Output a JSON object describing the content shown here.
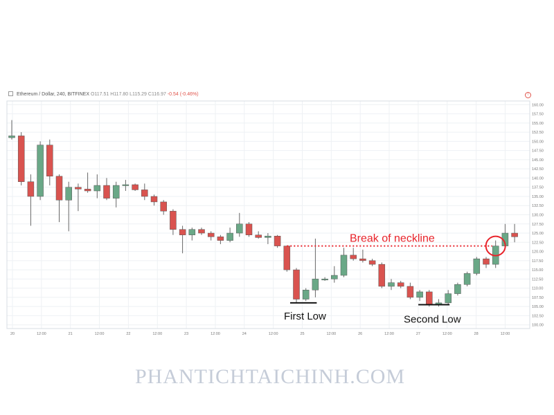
{
  "header": {
    "symbol": "Ethereum / Dollar, 240, BITFINEX",
    "open": "O117.51",
    "high": "H117.80",
    "low": "L115.29",
    "close": "C116.97",
    "change": "-0.54 (-0.46%)"
  },
  "watermark": "PHANTICHTAICHINH.COM",
  "colors": {
    "up": "#6aa887",
    "down": "#d9534f",
    "annotation": "#e8232a",
    "text": "#111111",
    "grid": "#eef1f4"
  },
  "chart_data": {
    "type": "candlestick",
    "ylim": [
      99,
      161
    ],
    "y_ticks": [
      "160.00",
      "157.50",
      "155.00",
      "152.50",
      "150.00",
      "147.50",
      "145.00",
      "142.50",
      "140.00",
      "137.50",
      "135.00",
      "132.50",
      "130.00",
      "127.50",
      "125.00",
      "122.50",
      "120.00",
      "117.50",
      "115.00",
      "112.50",
      "110.00",
      "107.50",
      "105.00",
      "102.50",
      "100.00"
    ],
    "x_ticks": [
      "20",
      "12:00",
      "21",
      "12:00",
      "22",
      "12:00",
      "23",
      "12:00",
      "24",
      "12:00",
      "25",
      "12:00",
      "26",
      "12:00",
      "27",
      "12:00",
      "28",
      "12:00"
    ],
    "candles": [
      {
        "o": 151.0,
        "h": 155.8,
        "l": 150.5,
        "c": 151.5
      },
      {
        "o": 151.5,
        "h": 152.5,
        "l": 138.0,
        "c": 139.0
      },
      {
        "o": 139.0,
        "h": 141.0,
        "l": 127.0,
        "c": 135.0
      },
      {
        "o": 135.0,
        "h": 150.0,
        "l": 134.0,
        "c": 149.0
      },
      {
        "o": 149.0,
        "h": 150.5,
        "l": 138.0,
        "c": 140.5
      },
      {
        "o": 140.5,
        "h": 141.0,
        "l": 128.0,
        "c": 134.0
      },
      {
        "o": 134.0,
        "h": 139.0,
        "l": 125.5,
        "c": 137.5
      },
      {
        "o": 137.5,
        "h": 138.5,
        "l": 131.0,
        "c": 137.0
      },
      {
        "o": 137.0,
        "h": 141.5,
        "l": 136.0,
        "c": 136.5
      },
      {
        "o": 136.5,
        "h": 141.0,
        "l": 134.5,
        "c": 138.0
      },
      {
        "o": 138.0,
        "h": 140.0,
        "l": 134.0,
        "c": 134.5
      },
      {
        "o": 134.5,
        "h": 139.0,
        "l": 132.0,
        "c": 138.0
      },
      {
        "o": 138.0,
        "h": 139.5,
        "l": 136.5,
        "c": 138.2
      },
      {
        "o": 138.2,
        "h": 138.5,
        "l": 136.5,
        "c": 136.8
      },
      {
        "o": 136.8,
        "h": 138.5,
        "l": 134.0,
        "c": 135.0
      },
      {
        "o": 135.0,
        "h": 135.5,
        "l": 132.5,
        "c": 133.5
      },
      {
        "o": 133.5,
        "h": 134.0,
        "l": 130.0,
        "c": 131.0
      },
      {
        "o": 131.0,
        "h": 131.5,
        "l": 124.5,
        "c": 126.0
      },
      {
        "o": 126.0,
        "h": 127.0,
        "l": 119.5,
        "c": 124.5
      },
      {
        "o": 124.5,
        "h": 126.5,
        "l": 123.0,
        "c": 126.0
      },
      {
        "o": 126.0,
        "h": 126.5,
        "l": 124.5,
        "c": 125.0
      },
      {
        "o": 125.0,
        "h": 125.5,
        "l": 123.0,
        "c": 124.0
      },
      {
        "o": 124.0,
        "h": 124.5,
        "l": 122.0,
        "c": 123.0
      },
      {
        "o": 123.0,
        "h": 126.5,
        "l": 122.5,
        "c": 125.0
      },
      {
        "o": 125.0,
        "h": 130.5,
        "l": 124.0,
        "c": 127.5
      },
      {
        "o": 127.5,
        "h": 128.0,
        "l": 124.0,
        "c": 124.5
      },
      {
        "o": 124.5,
        "h": 125.5,
        "l": 123.5,
        "c": 123.8
      },
      {
        "o": 123.8,
        "h": 125.0,
        "l": 122.0,
        "c": 124.2
      },
      {
        "o": 124.2,
        "h": 124.5,
        "l": 121.0,
        "c": 121.5
      },
      {
        "o": 121.5,
        "h": 121.5,
        "l": 114.5,
        "c": 115.0
      },
      {
        "o": 115.0,
        "h": 115.5,
        "l": 106.0,
        "c": 107.0
      },
      {
        "o": 107.0,
        "h": 110.0,
        "l": 106.5,
        "c": 109.5
      },
      {
        "o": 109.5,
        "h": 123.5,
        "l": 107.5,
        "c": 112.5
      },
      {
        "o": 112.5,
        "h": 113.0,
        "l": 112.0,
        "c": 112.5
      },
      {
        "o": 112.5,
        "h": 116.0,
        "l": 111.5,
        "c": 113.5
      },
      {
        "o": 113.5,
        "h": 121.0,
        "l": 113.0,
        "c": 119.0
      },
      {
        "o": 119.0,
        "h": 121.0,
        "l": 117.5,
        "c": 118.0
      },
      {
        "o": 118.0,
        "h": 120.5,
        "l": 117.0,
        "c": 117.5
      },
      {
        "o": 117.5,
        "h": 118.0,
        "l": 116.0,
        "c": 116.5
      },
      {
        "o": 116.5,
        "h": 117.0,
        "l": 110.0,
        "c": 110.5
      },
      {
        "o": 110.5,
        "h": 112.5,
        "l": 109.5,
        "c": 111.5
      },
      {
        "o": 111.5,
        "h": 112.0,
        "l": 110.0,
        "c": 110.5
      },
      {
        "o": 110.5,
        "h": 111.5,
        "l": 107.0,
        "c": 107.5
      },
      {
        "o": 107.5,
        "h": 109.5,
        "l": 106.5,
        "c": 109.0
      },
      {
        "o": 109.0,
        "h": 109.5,
        "l": 105.0,
        "c": 105.5
      },
      {
        "o": 105.5,
        "h": 107.0,
        "l": 105.0,
        "c": 106.0
      },
      {
        "o": 106.0,
        "h": 109.5,
        "l": 105.5,
        "c": 108.5
      },
      {
        "o": 108.5,
        "h": 111.5,
        "l": 108.0,
        "c": 111.0
      },
      {
        "o": 111.0,
        "h": 114.5,
        "l": 110.5,
        "c": 114.0
      },
      {
        "o": 114.0,
        "h": 118.5,
        "l": 113.5,
        "c": 118.0
      },
      {
        "o": 118.0,
        "h": 118.5,
        "l": 115.5,
        "c": 116.5
      },
      {
        "o": 116.5,
        "h": 123.0,
        "l": 115.5,
        "c": 121.5
      },
      {
        "o": 121.5,
        "h": 127.5,
        "l": 121.0,
        "c": 125.0
      },
      {
        "o": 125.0,
        "h": 127.5,
        "l": 122.5,
        "c": 124.0
      }
    ],
    "neckline": 121.5,
    "annotations": {
      "neckline_label": "Break of neckline",
      "first_low_label": "First Low",
      "first_low_level": 106.0,
      "second_low_label": "Second Low",
      "second_low_level": 105.5
    }
  }
}
